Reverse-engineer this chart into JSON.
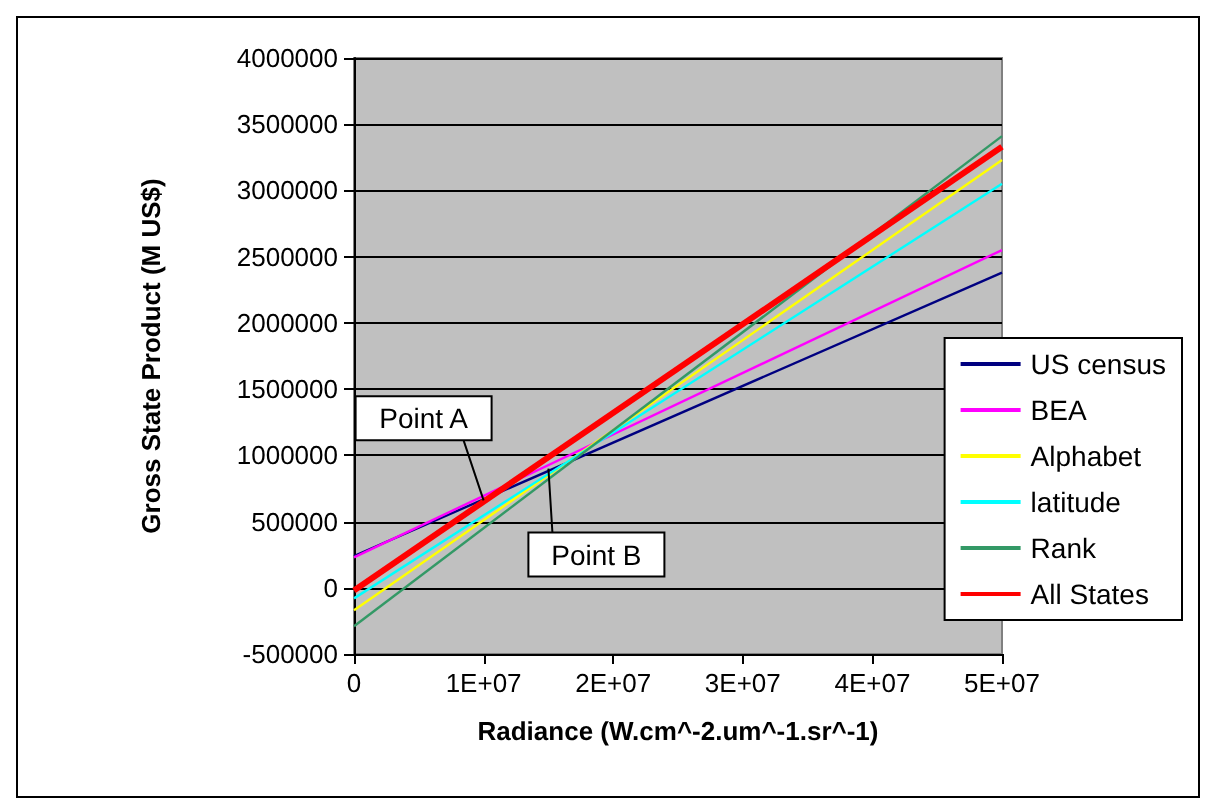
{
  "chart_data": {
    "type": "line",
    "xlabel": "Radiance (W.cm^-2.um^-1.sr^-1)",
    "ylabel": "Gross State Product (M US$)",
    "x": [
      0,
      50000000
    ],
    "series": [
      {
        "name": "US census",
        "color": "#000080",
        "values": [
          240000,
          2380000
        ]
      },
      {
        "name": "BEA",
        "color": "#ff00ff",
        "values": [
          230000,
          2550000
        ]
      },
      {
        "name": "Alphabet",
        "color": "#ffff00",
        "values": [
          -170000,
          3230000
        ]
      },
      {
        "name": "latitude",
        "color": "#00ffff",
        "values": [
          -80000,
          3050000
        ]
      },
      {
        "name": "Rank",
        "color": "#339966",
        "values": [
          -290000,
          3410000
        ]
      },
      {
        "name": "All States",
        "color": "#ff0000",
        "values": [
          -20000,
          3330000
        ]
      }
    ],
    "xlim": [
      0,
      50000000
    ],
    "xticks": [
      {
        "value": 0,
        "label": "0"
      },
      {
        "value": 10000000,
        "label": "1E+07"
      },
      {
        "value": 20000000,
        "label": "2E+07"
      },
      {
        "value": 30000000,
        "label": "3E+07"
      },
      {
        "value": 40000000,
        "label": "4E+07"
      },
      {
        "value": 50000000,
        "label": "5E+07"
      }
    ],
    "ylim": [
      -500000,
      4000000
    ],
    "yticks": [
      -500000,
      0,
      500000,
      1000000,
      1500000,
      2000000,
      2500000,
      3000000,
      3500000,
      4000000
    ],
    "grid": "y",
    "legend": "right",
    "marker": "none",
    "line_style": "solid",
    "annotations": [
      {
        "text": "Point A",
        "x": 10000000,
        "y": 660000
      },
      {
        "text": "Point B",
        "x": 15000000,
        "y": 900000
      }
    ]
  }
}
